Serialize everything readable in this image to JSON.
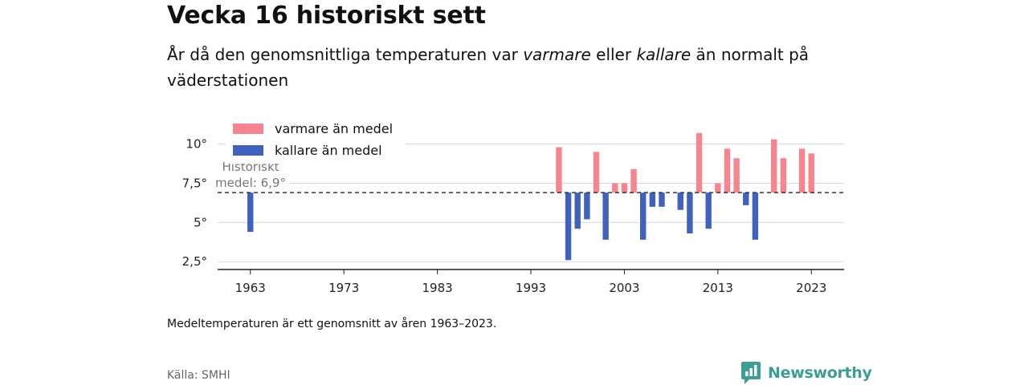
{
  "header": {
    "title": "Vecka 16 historiskt sett",
    "subtitle_pre": "År då den genomsnittliga temperaturen var ",
    "subtitle_warm": "varmare",
    "subtitle_mid": " eller ",
    "subtitle_cold": "kallare",
    "subtitle_post": " än normalt på väderstationen"
  },
  "footer": {
    "note": "Medeltemperaturen är ett genomsnitt av åren 1963–2023.",
    "source": "Källa: SMHI",
    "brand": "Newsworthy"
  },
  "colors": {
    "warm": "#f7858f",
    "cold": "#3e62be",
    "brand": "#3a9e95"
  },
  "chart_data": {
    "type": "bar",
    "baseline": 6.9,
    "baseline_label_line1": "Historiskt",
    "baseline_label_line2": "medel: 6,9°",
    "ylim": [
      2,
      11
    ],
    "yticks": [
      2.5,
      5,
      7.5,
      10
    ],
    "ytick_labels": [
      "2,5°",
      "5°",
      "7,5°",
      "10°"
    ],
    "xlim": [
      1959.5,
      2026.5
    ],
    "xticks": [
      1963,
      1973,
      1983,
      1993,
      2003,
      2013,
      2023
    ],
    "xtick_labels": [
      "1963",
      "1973",
      "1983",
      "1993",
      "2003",
      "2013",
      "2023"
    ],
    "legend": [
      {
        "name": "varmare än medel",
        "color": "#f7858f"
      },
      {
        "name": "kallare än medel",
        "color": "#3e62be"
      }
    ],
    "legend_position": "top-left",
    "grid": true,
    "years": [
      1963,
      1996,
      1997,
      1998,
      1999,
      2000,
      2001,
      2002,
      2003,
      2004,
      2005,
      2006,
      2007,
      2009,
      2010,
      2011,
      2012,
      2013,
      2014,
      2015,
      2016,
      2017,
      2019,
      2020,
      2022,
      2023
    ],
    "values": [
      4.4,
      9.8,
      2.6,
      4.6,
      5.2,
      9.5,
      3.9,
      7.5,
      7.5,
      8.4,
      3.9,
      6.0,
      6.0,
      5.8,
      4.3,
      10.7,
      4.6,
      7.5,
      9.7,
      9.1,
      6.1,
      3.9,
      10.3,
      9.1,
      9.7,
      9.4
    ]
  }
}
